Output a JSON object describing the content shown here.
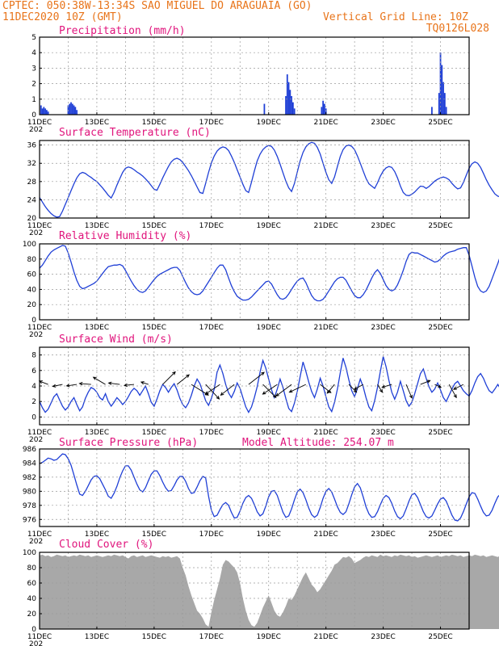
{
  "header": {
    "line1_left": "CPTEC:   050:38W-13:34S  SAO MIGUEL DO ARAGUAIA (GO)",
    "line2_left": "11DEC2020 10Z (GMT)",
    "line2_right": "Vertical Grid Line: 10Z",
    "line3_right": "TQ0126L028"
  },
  "x_tick_labels": [
    "11DEC",
    "13DEC",
    "15DEC",
    "17DEC",
    "19DEC",
    "21DEC",
    "23DEC",
    "25DEC"
  ],
  "x_year_fragment": "202",
  "colors": {
    "header": "#e8741a",
    "panel_title": "#e0147c",
    "line": "#1f3fd6",
    "bar": "#1f3fd6",
    "cloud": "#a8a8a8",
    "grid": "#9a9a9a"
  },
  "chart_data": [
    {
      "type": "bar",
      "title": "Precipitation (mm/h)",
      "ylim": [
        0,
        5
      ],
      "yticks": [
        0,
        1,
        2,
        3,
        4,
        5
      ],
      "xlim": [
        0,
        15
      ],
      "x_unit": "days since 11DEC 10Z",
      "x": [
        0.05,
        0.1,
        0.15,
        0.2,
        0.25,
        0.3,
        1.0,
        1.05,
        1.1,
        1.15,
        1.2,
        1.25,
        1.3,
        7.85,
        8.6,
        8.65,
        8.7,
        8.75,
        8.8,
        8.85,
        8.9,
        9.85,
        9.9,
        9.95,
        10.0,
        13.7,
        13.95,
        14.0,
        14.05,
        14.1,
        14.15,
        14.2
      ],
      "values": [
        0.6,
        0.4,
        0.5,
        0.4,
        0.3,
        0.2,
        0.6,
        0.7,
        0.8,
        0.7,
        0.6,
        0.5,
        0.3,
        0.7,
        1.2,
        2.6,
        2.1,
        1.6,
        1.2,
        0.8,
        0.4,
        0.5,
        0.9,
        0.7,
        0.4,
        0.5,
        1.4,
        4.0,
        3.2,
        2.1,
        1.4,
        0.5
      ]
    },
    {
      "type": "line",
      "title": "Surface Temperature (nC)",
      "ylim": [
        20,
        37
      ],
      "yticks": [
        20,
        24,
        28,
        32,
        36
      ],
      "xlim": [
        0,
        15
      ],
      "x_step": 0.1,
      "y": [
        24.5,
        23.5,
        22.5,
        21.7,
        21.0,
        20.5,
        20.2,
        20.3,
        21.5,
        23.0,
        24.5,
        26.0,
        27.5,
        28.8,
        29.7,
        30.0,
        29.8,
        29.3,
        28.9,
        28.4,
        28.0,
        27.3,
        26.6,
        25.8,
        25.0,
        24.4,
        25.6,
        27.2,
        28.6,
        30.0,
        30.9,
        31.2,
        31.0,
        30.6,
        30.1,
        29.7,
        29.2,
        28.6,
        27.9,
        27.1,
        26.3,
        26.1,
        27.4,
        28.8,
        30.1,
        31.3,
        32.3,
        32.9,
        33.1,
        32.8,
        32.2,
        31.3,
        30.4,
        29.3,
        28.1,
        26.8,
        25.6,
        25.4,
        27.6,
        30.0,
        32.1,
        33.6,
        34.7,
        35.3,
        35.6,
        35.4,
        34.8,
        33.6,
        32.2,
        30.6,
        29.0,
        27.4,
        26.0,
        25.6,
        27.9,
        30.3,
        32.5,
        34.0,
        35.0,
        35.6,
        35.9,
        35.7,
        34.9,
        33.5,
        31.8,
        29.9,
        28.1,
        26.6,
        25.8,
        27.6,
        30.1,
        32.5,
        34.4,
        35.6,
        36.3,
        36.6,
        36.4,
        35.5,
        34.0,
        32.0,
        30.0,
        28.4,
        27.6,
        29.0,
        31.3,
        33.5,
        35.0,
        35.8,
        36.0,
        35.7,
        35.0,
        33.6,
        32.0,
        30.3,
        28.7,
        27.5,
        27.0,
        26.5,
        27.7,
        29.2,
        30.3,
        31.0,
        31.3,
        31.1,
        30.2,
        28.8,
        27.0,
        25.6,
        25.0,
        24.9,
        25.2,
        25.7,
        26.4,
        27.0,
        26.9,
        26.5,
        26.9,
        27.5,
        28.1,
        28.5,
        28.8,
        29.0,
        28.8,
        28.4,
        27.6,
        26.9,
        26.4,
        26.6,
        27.8,
        29.4,
        30.9,
        31.9,
        32.3,
        32.0,
        31.1,
        29.8,
        28.4,
        27.2,
        26.2,
        25.3,
        24.8,
        24.6,
        25.8,
        27.6,
        29.3,
        30.6,
        31.3,
        31.4,
        30.9,
        29.9,
        28.6,
        27.3,
        26.1,
        25.3,
        25.2,
        26.6,
        28.6,
        30.4,
        31.7,
        32.5,
        32.8,
        32.5,
        31.6,
        30.2,
        28.6,
        27.0,
        25.7,
        24.9,
        26.2,
        28.3,
        30.4,
        32.1,
        33.0,
        33.3,
        32.9,
        31.8,
        30.3,
        28.7,
        27.1,
        25.7,
        24.7,
        25.9,
        28.1,
        30.2,
        31.8,
        32.8,
        33.2,
        32.9,
        31.8,
        30.3,
        28.6,
        27.2,
        26.3,
        27.5,
        28.9,
        30.2,
        31.1,
        31.6,
        31.3,
        30.4,
        29.3,
        28.5,
        27.9,
        27.4,
        26.8,
        26.0,
        25.2,
        24.6,
        24.3,
        25.6,
        27.6,
        29.6,
        31.3,
        32.5,
        33.2,
        33.6,
        33.2,
        32.4,
        31.1
      ]
    },
    {
      "type": "line",
      "title": "Relative Humidity (%)",
      "ylim": [
        0,
        100
      ],
      "yticks": [
        0,
        20,
        40,
        60,
        80,
        100
      ],
      "xlim": [
        0,
        15
      ],
      "x_step": 0.1,
      "y": [
        68,
        72,
        78,
        84,
        89,
        92,
        94,
        96,
        98,
        97,
        88,
        76,
        63,
        52,
        44,
        41,
        42,
        44,
        46,
        48,
        51,
        56,
        61,
        66,
        70,
        71,
        72,
        72,
        73,
        71,
        65,
        58,
        51,
        45,
        40,
        37,
        36,
        38,
        43,
        48,
        53,
        57,
        60,
        62,
        64,
        66,
        68,
        69,
        69,
        65,
        57,
        49,
        42,
        37,
        34,
        33,
        34,
        38,
        44,
        50,
        56,
        62,
        68,
        72,
        72,
        66,
        55,
        45,
        37,
        31,
        28,
        26,
        26,
        27,
        30,
        34,
        38,
        42,
        46,
        50,
        51,
        47,
        40,
        33,
        28,
        27,
        29,
        34,
        40,
        46,
        51,
        54,
        55,
        49,
        40,
        32,
        27,
        25,
        25,
        27,
        32,
        38,
        44,
        50,
        54,
        56,
        56,
        52,
        45,
        38,
        32,
        29,
        29,
        33,
        39,
        47,
        55,
        62,
        66,
        61,
        53,
        45,
        40,
        38,
        40,
        46,
        55,
        65,
        77,
        86,
        89,
        88,
        88,
        86,
        84,
        82,
        80,
        78,
        76,
        77,
        80,
        84,
        87,
        89,
        90,
        91,
        93,
        94,
        95,
        95,
        85,
        71,
        56,
        44,
        38,
        36,
        38,
        44,
        54,
        64,
        74,
        85,
        93,
        95,
        94,
        92,
        80,
        66,
        52,
        43,
        38,
        36,
        38,
        45,
        54,
        64,
        74,
        83,
        89,
        91,
        88,
        78,
        66,
        54,
        44,
        38,
        35,
        36,
        40,
        47,
        56,
        65,
        73,
        80,
        84,
        84,
        77,
        66,
        54,
        44,
        38,
        35,
        36,
        40,
        47,
        56,
        65,
        73,
        80,
        84,
        84,
        78,
        66,
        54,
        44,
        38,
        35,
        36,
        42,
        51,
        62,
        74,
        85,
        93,
        94,
        94,
        95,
        95,
        90,
        78,
        64,
        50,
        40,
        35,
        33,
        33,
        36,
        42,
        49
      ]
    },
    {
      "type": "line",
      "title": "Surface Wind (m/s)",
      "ylim": [
        -1,
        9
      ],
      "yticks": [
        0,
        2,
        4,
        6,
        8
      ],
      "xlim": [
        0,
        15
      ],
      "x_step": 0.1,
      "y": [
        2.0,
        1.2,
        0.6,
        1.0,
        1.8,
        2.6,
        3.0,
        2.2,
        1.4,
        0.9,
        1.3,
        2.0,
        2.5,
        1.6,
        0.8,
        1.3,
        2.4,
        3.2,
        3.8,
        3.6,
        3.2,
        2.5,
        2.2,
        3.0,
        2.0,
        1.4,
        1.9,
        2.5,
        2.1,
        1.6,
        2.0,
        2.6,
        3.3,
        3.7,
        3.4,
        2.8,
        3.4,
        4.0,
        3.0,
        1.9,
        1.4,
        2.3,
        3.4,
        4.2,
        3.8,
        3.2,
        3.8,
        4.3,
        3.5,
        2.4,
        1.6,
        1.2,
        1.8,
        2.8,
        4.0,
        4.9,
        4.3,
        3.2,
        2.1,
        1.5,
        2.4,
        3.6,
        5.8,
        6.7,
        5.6,
        4.2,
        3.1,
        2.5,
        3.3,
        4.4,
        3.7,
        2.5,
        1.3,
        0.6,
        1.3,
        2.5,
        3.9,
        5.8,
        7.3,
        6.3,
        4.9,
        3.5,
        2.5,
        3.6,
        4.9,
        3.8,
        2.4,
        1.1,
        0.7,
        1.8,
        3.3,
        5.2,
        7.1,
        5.9,
        4.5,
        3.3,
        2.5,
        3.6,
        5.0,
        4.0,
        2.6,
        1.3,
        0.7,
        1.9,
        3.6,
        5.7,
        7.6,
        6.4,
        4.8,
        3.4,
        2.6,
        3.7,
        4.9,
        3.9,
        2.5,
        1.3,
        0.8,
        2.1,
        3.8,
        5.9,
        7.8,
        6.5,
        4.7,
        3.2,
        2.3,
        3.2,
        4.6,
        3.4,
        2.1,
        1.4,
        1.9,
        3.0,
        4.3,
        5.6,
        6.2,
        5.0,
        3.9,
        3.2,
        3.6,
        4.4,
        3.5,
        2.5,
        2.0,
        2.8,
        3.6,
        4.3,
        4.6,
        4.0,
        3.4,
        3.0,
        2.7,
        3.4,
        4.4,
        5.2,
        5.6,
        5.0,
        4.1,
        3.4,
        3.1,
        3.6,
        4.2,
        3.6,
        2.8,
        2.2,
        2.7,
        3.4,
        3.9,
        3.5,
        2.9,
        2.6,
        3.2,
        4.0,
        4.2,
        3.7,
        3.0,
        2.6,
        3.2,
        4.0,
        4.4,
        3.9,
        3.2,
        2.5,
        2.2,
        2.9,
        3.9,
        4.4,
        3.8,
        3.0,
        2.4,
        2.6,
        3.4,
        4.2,
        4.7,
        4.1,
        3.2,
        2.5,
        2.2,
        2.8,
        3.7,
        4.4,
        4.0,
        3.2,
        2.6,
        2.4,
        3.2,
        4.4,
        5.3,
        6.5,
        5.6,
        4.3,
        3.2,
        2.5,
        2.2,
        2.8,
        3.6,
        3.2,
        2.1,
        1.2,
        1.6,
        2.8,
        3.9,
        3.6,
        3.9,
        4.1,
        2.8,
        1.6,
        1.0,
        1.8,
        3.0,
        3.8
      ]
    },
    {
      "type": "line",
      "title": "Surface Pressure (hPa)",
      "subtitle": "Model Altitude: 254.07 m",
      "ylim": [
        975,
        986
      ],
      "yticks": [
        976,
        978,
        980,
        982,
        984,
        986
      ],
      "xlim": [
        0,
        15
      ],
      "x_step": 0.1,
      "y": [
        983.9,
        984.1,
        984.4,
        984.7,
        984.6,
        984.4,
        984.5,
        984.9,
        985.3,
        985.2,
        984.6,
        983.7,
        982.3,
        980.9,
        979.6,
        979.4,
        980.0,
        980.8,
        981.6,
        982.1,
        982.2,
        981.8,
        981.0,
        980.2,
        979.3,
        979.0,
        979.7,
        980.7,
        981.9,
        982.9,
        983.6,
        983.6,
        983.0,
        982.0,
        981.0,
        980.2,
        979.9,
        980.5,
        981.5,
        982.4,
        982.9,
        982.9,
        982.2,
        981.3,
        980.5,
        980.0,
        980.1,
        980.8,
        981.6,
        982.1,
        982.1,
        981.4,
        980.4,
        979.7,
        979.8,
        980.6,
        981.5,
        982.1,
        981.9,
        979.3,
        977.3,
        976.4,
        976.6,
        977.4,
        978.1,
        978.4,
        978.0,
        977.0,
        976.2,
        976.3,
        977.2,
        978.3,
        979.1,
        979.4,
        979.0,
        978.1,
        977.1,
        976.5,
        976.8,
        977.9,
        979.2,
        980.0,
        980.1,
        979.4,
        978.2,
        977.0,
        976.3,
        976.5,
        977.5,
        978.8,
        979.9,
        980.3,
        979.8,
        978.8,
        977.6,
        976.7,
        976.3,
        976.6,
        977.7,
        979.0,
        980.0,
        980.4,
        979.9,
        978.9,
        977.8,
        977.0,
        976.7,
        977.1,
        978.2,
        979.5,
        980.6,
        981.1,
        980.5,
        979.2,
        977.8,
        976.8,
        976.3,
        976.4,
        977.1,
        978.1,
        979.0,
        979.4,
        979.1,
        978.3,
        977.2,
        976.4,
        976.1,
        976.5,
        977.5,
        978.6,
        979.5,
        979.7,
        979.1,
        978.1,
        977.1,
        976.4,
        976.2,
        976.5,
        977.3,
        978.2,
        978.9,
        979.1,
        978.6,
        977.6,
        976.6,
        975.9,
        975.8,
        976.2,
        977.1,
        978.2,
        979.2,
        979.8,
        979.7,
        978.9,
        977.9,
        977.0,
        976.5,
        976.6,
        977.3,
        978.3,
        979.2,
        979.6,
        979.3,
        978.5,
        977.4,
        976.5,
        976.1,
        976.4,
        977.2,
        978.3,
        979.4,
        980.0,
        979.7,
        978.8,
        977.7,
        976.8,
        976.2,
        976.3,
        976.9,
        977.8,
        978.8,
        979.4,
        979.3,
        978.5,
        977.5,
        976.6,
        976.0,
        976.0,
        976.6,
        977.5,
        978.5,
        979.2,
        979.3,
        978.7,
        977.7,
        976.7,
        976.0,
        975.8,
        976.2,
        977.1,
        978.2,
        979.2,
        979.6,
        979.3,
        978.4,
        977.3,
        976.4,
        975.9,
        976.1,
        976.9,
        977.9,
        978.9,
        979.5,
        979.3,
        978.5,
        977.4,
        976.4,
        975.7,
        975.5,
        975.7,
        976.2,
        976.6,
        976.5,
        976.0,
        975.6,
        975.4,
        975.5,
        976.1,
        977.0
      ]
    },
    {
      "type": "area",
      "title": "Cloud Cover (%)",
      "ylim": [
        0,
        100
      ],
      "yticks": [
        0,
        20,
        40,
        60,
        80,
        100
      ],
      "xlim": [
        0,
        15
      ],
      "x_step": 0.1,
      "y": [
        96,
        97,
        95,
        96,
        94,
        95,
        97,
        96,
        95,
        96,
        94,
        95,
        96,
        95,
        97,
        96,
        95,
        96,
        94,
        95,
        96,
        95,
        94,
        95,
        96,
        95,
        97,
        96,
        95,
        96,
        94,
        92,
        95,
        96,
        94,
        95,
        96,
        94,
        95,
        96,
        95,
        94,
        93,
        95,
        94,
        95,
        93,
        94,
        95,
        92,
        80,
        70,
        56,
        44,
        34,
        24,
        20,
        14,
        6,
        3,
        22,
        38,
        52,
        66,
        84,
        90,
        88,
        84,
        80,
        74,
        60,
        40,
        24,
        12,
        5,
        3,
        8,
        18,
        28,
        36,
        44,
        34,
        24,
        18,
        16,
        22,
        30,
        40,
        38,
        44,
        52,
        60,
        68,
        74,
        66,
        58,
        54,
        48,
        52,
        58,
        64,
        70,
        76,
        84,
        86,
        90,
        94,
        93,
        95,
        92,
        86,
        88,
        90,
        93,
        95,
        94,
        96,
        95,
        94,
        97,
        95,
        96,
        95,
        94,
        96,
        95,
        97,
        96,
        95,
        96,
        94,
        95,
        93,
        94,
        95,
        96,
        95,
        94,
        95,
        96,
        94,
        95,
        96,
        95,
        97,
        96,
        95,
        96,
        94,
        95,
        96,
        95,
        97,
        96,
        95,
        96,
        94,
        95,
        96,
        95,
        94,
        96,
        95,
        97,
        96,
        95,
        94,
        95,
        96,
        95,
        97,
        96,
        95,
        96,
        94,
        95,
        96,
        95,
        94,
        95,
        96,
        95,
        97,
        96,
        95,
        96,
        94,
        95,
        96,
        95,
        94,
        95,
        96,
        95,
        97,
        96,
        95,
        96,
        94,
        95,
        96,
        95,
        97,
        96,
        95,
        96,
        94,
        95,
        96,
        95,
        94,
        95,
        96,
        95,
        97,
        96,
        95,
        96,
        94,
        95,
        96,
        95,
        97,
        96,
        95,
        96,
        94,
        95,
        96,
        95,
        94,
        95,
        96,
        95,
        97,
        96,
        95,
        96,
        94,
        95,
        96
      ]
    }
  ],
  "wind_vectors": {
    "x": [
      0.3,
      0.8,
      1.3,
      1.8,
      2.3,
      2.8,
      3.3,
      3.8,
      4.3,
      4.8,
      5.3,
      5.8,
      6.3,
      6.8,
      7.3,
      7.8,
      8.3,
      8.8,
      9.3,
      9.8,
      10.3,
      10.8,
      11.3,
      11.8,
      12.3,
      12.8,
      13.3,
      13.8,
      14.3,
      14.8
    ],
    "u": [
      -1.8,
      -2.0,
      -2.1,
      -2.4,
      -2.5,
      -2.3,
      -2.0,
      -1.5,
      2.6,
      2.5,
      3.5,
      2.8,
      -3.0,
      -2.8,
      3.2,
      2.7,
      -3.0,
      -3.2,
      -3.4,
      2.2,
      -1.5,
      1.6,
      -1.8,
      1.0,
      -2.0,
      1.2,
      2.0,
      1.3,
      1.5,
      -2.0
    ],
    "v": [
      0.7,
      -0.4,
      -0.3,
      0.2,
      1.5,
      0.3,
      -0.2,
      0.5,
      2.6,
      2.0,
      -2.2,
      -3.0,
      -2.0,
      -2.2,
      2.5,
      -2.7,
      -2.0,
      -2.4,
      -1.6,
      -1.7,
      -1.8,
      -1.6,
      -1.0,
      -1.6,
      -0.6,
      -2.8,
      0.8,
      -0.6,
      -2.7,
      -1.0
    ]
  }
}
